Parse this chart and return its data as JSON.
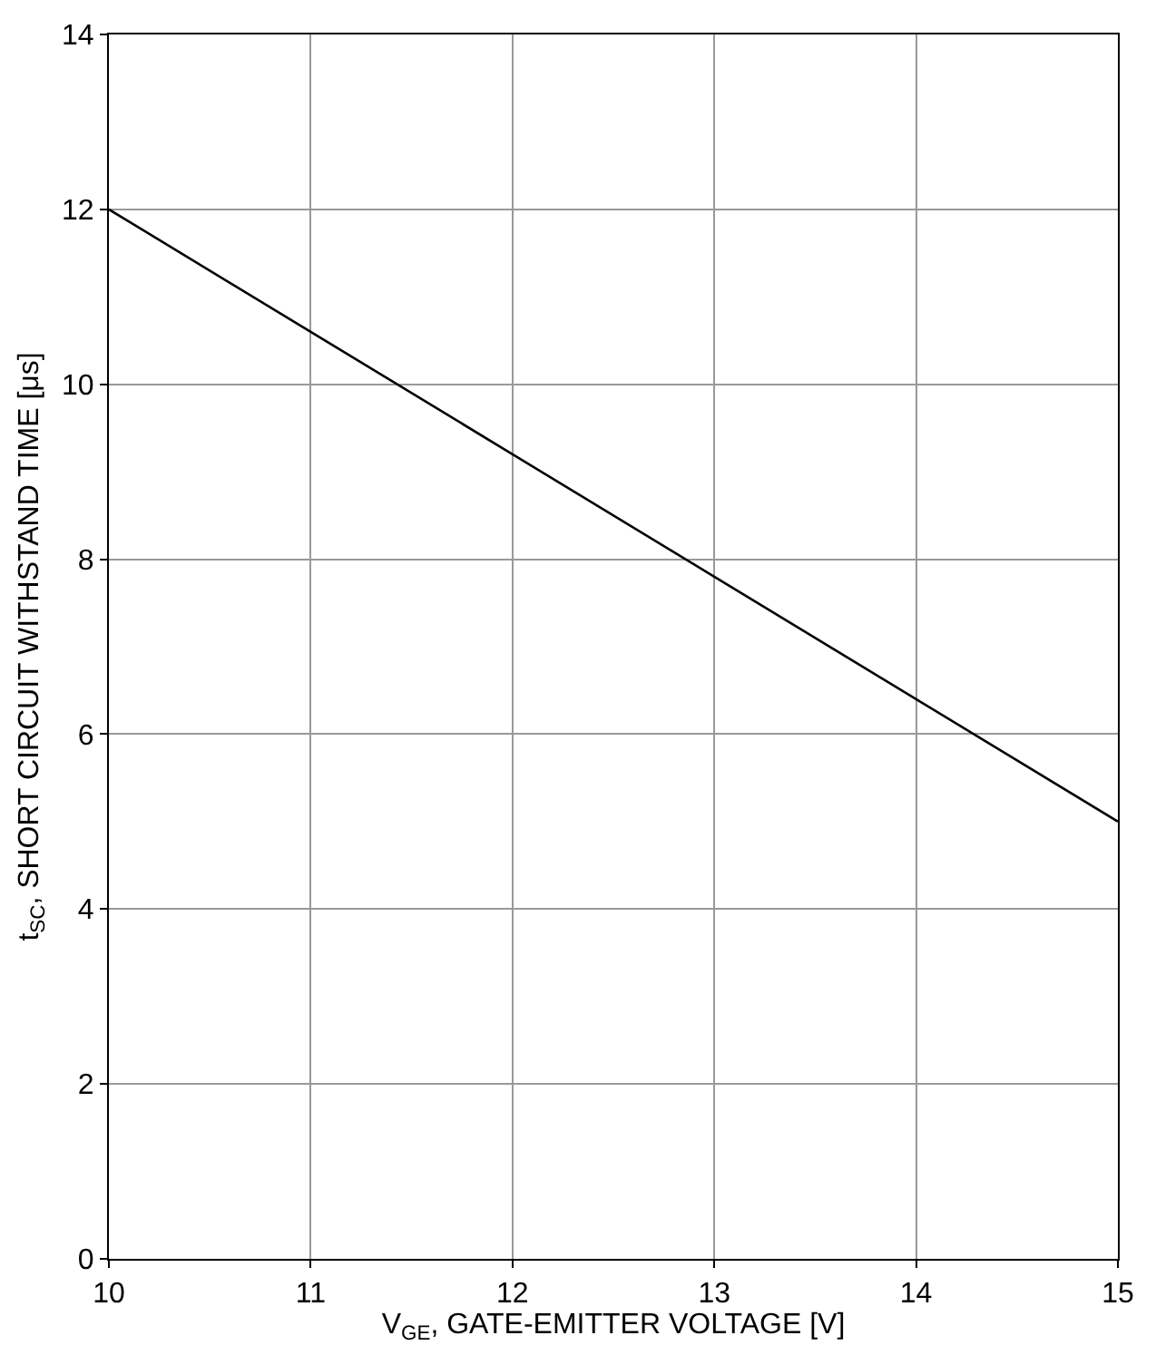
{
  "chart_data": {
    "type": "line",
    "xlabel": "V$_{GE}$, GATE-EMITTER VOLTAGE [V]",
    "ylabel": "t$_{SC}$, SHORT CIRCUIT WITHSTAND TIME [μs]",
    "x": [
      10,
      11,
      12,
      13,
      14,
      15
    ],
    "series": [
      {
        "color": "#000000",
        "values": [
          12,
          10.6,
          9.2,
          7.8,
          6.4,
          5
        ]
      }
    ],
    "xlim": [
      10,
      15
    ],
    "xticks": [
      10,
      11,
      12,
      13,
      14,
      15
    ],
    "ylim": [
      0,
      14
    ],
    "yticks": [
      0,
      2,
      4,
      6,
      8,
      10,
      12,
      14
    ],
    "grid": true,
    "marker": "none",
    "line_style": "solid"
  }
}
